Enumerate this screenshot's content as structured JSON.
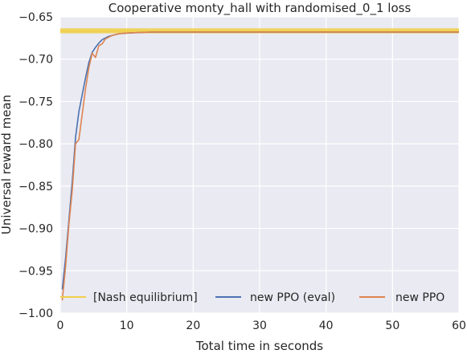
{
  "chart_data": {
    "type": "line",
    "title": "Cooperative monty_hall with randomised_0_1 loss",
    "xlabel": "Total time in seconds",
    "ylabel": "Universal reward mean",
    "xlim": [
      0,
      60
    ],
    "ylim": [
      -1.0,
      -0.65
    ],
    "xticks": [
      0,
      10,
      20,
      30,
      40,
      50,
      60
    ],
    "xtick_labels": [
      "0",
      "10",
      "20",
      "30",
      "40",
      "50",
      "60"
    ],
    "yticks": [
      -1.0,
      -0.95,
      -0.9,
      -0.85,
      -0.8,
      -0.75,
      -0.7,
      -0.65
    ],
    "ytick_labels": [
      "−1.00",
      "−0.95",
      "−0.90",
      "−0.85",
      "−0.80",
      "−0.75",
      "−0.70",
      "−0.65"
    ],
    "grid": true,
    "legend_position": "lower center",
    "series": [
      {
        "name": "[Nash equilibrium]",
        "kind": "hline",
        "y": -0.6667,
        "color": "#f0d04a",
        "band": [
          -0.6635,
          -0.6695
        ]
      },
      {
        "name": "new PPO (eval)",
        "color": "#4c72b0",
        "x": [
          0.3,
          0.8,
          1.3,
          1.8,
          2.3,
          2.8,
          3.3,
          3.8,
          4.3,
          4.8,
          5.3,
          5.8,
          6.3,
          6.8,
          7.3,
          7.8,
          8.3,
          8.8,
          9.5,
          10.5,
          12,
          14,
          17,
          20,
          30,
          40,
          50,
          60
        ],
        "y": [
          -0.972,
          -0.935,
          -0.89,
          -0.845,
          -0.792,
          -0.762,
          -0.742,
          -0.722,
          -0.704,
          -0.692,
          -0.686,
          -0.681,
          -0.677,
          -0.675,
          -0.673,
          -0.672,
          -0.671,
          -0.67,
          -0.6695,
          -0.669,
          -0.6685,
          -0.668,
          -0.668,
          -0.668,
          -0.668,
          -0.668,
          -0.668,
          -0.668
        ]
      },
      {
        "name": "new PPO",
        "color": "#dd8452",
        "x": [
          0.3,
          0.8,
          1.3,
          1.8,
          2.3,
          2.8,
          3.3,
          3.8,
          4.3,
          4.8,
          5.3,
          5.8,
          6.3,
          6.8,
          7.3,
          7.8,
          8.3,
          8.8,
          9.5,
          10.5,
          12,
          14,
          17,
          20,
          30,
          40,
          50,
          60
        ],
        "y": [
          -0.985,
          -0.945,
          -0.895,
          -0.855,
          -0.8,
          -0.795,
          -0.765,
          -0.735,
          -0.71,
          -0.693,
          -0.698,
          -0.684,
          -0.682,
          -0.676,
          -0.674,
          -0.672,
          -0.671,
          -0.67,
          -0.6695,
          -0.669,
          -0.6685,
          -0.668,
          -0.668,
          -0.668,
          -0.668,
          -0.668,
          -0.668,
          -0.668
        ]
      }
    ]
  }
}
